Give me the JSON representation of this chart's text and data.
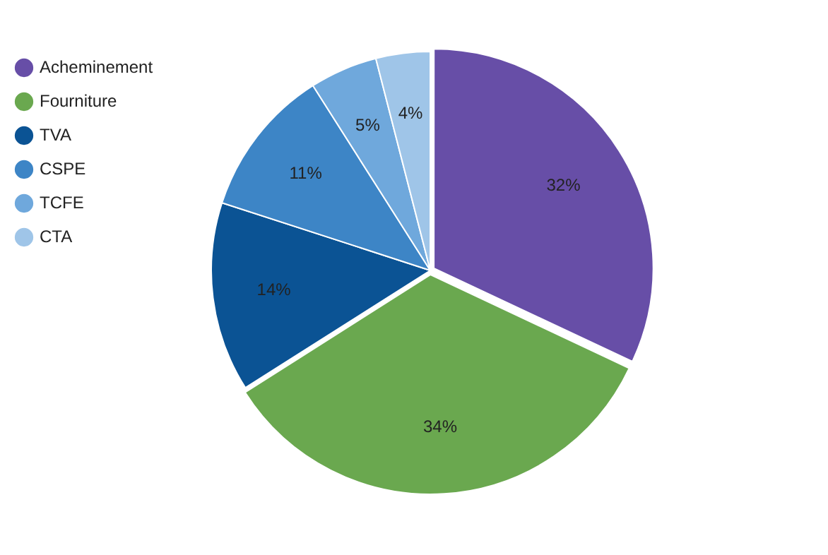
{
  "chart_data": {
    "type": "pie",
    "categories": [
      "Acheminement",
      "Fourniture",
      "TVA",
      "CSPE",
      "TCFE",
      "CTA"
    ],
    "values": [
      32,
      34,
      14,
      11,
      5,
      4
    ],
    "colors": [
      "#674ea7",
      "#6aa84f",
      "#0b5394",
      "#3d85c6",
      "#6fa8dc",
      "#9fc5e8"
    ],
    "value_labels": [
      "32%",
      "34%",
      "14%",
      "11%",
      "5%",
      "4%"
    ],
    "legend": "top left",
    "marker": "circle"
  }
}
